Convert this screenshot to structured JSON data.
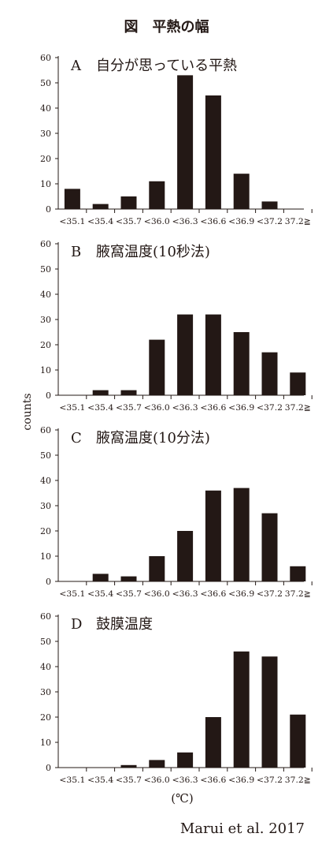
{
  "figure_title": {
    "label": "図",
    "text": "平熱の幅"
  },
  "ylabel": "counts",
  "unit": "(℃)",
  "source": "Marui et al. 2017",
  "bar_color": "#231815",
  "chart_data": [
    {
      "type": "bar",
      "panel": "A",
      "title": "自分が思っている平熱",
      "categories": [
        "<35.1",
        "<35.4",
        "<35.7",
        "<36.0",
        "<36.3",
        "<36.6",
        "<36.9",
        "<37.2",
        "37.2≧"
      ],
      "values": [
        8,
        2,
        5,
        11,
        53,
        45,
        14,
        3,
        0
      ],
      "ylim": [
        0,
        60
      ],
      "yticks": [
        0,
        10,
        20,
        30,
        40,
        50,
        60
      ],
      "ylabel": "counts",
      "xlabel": ""
    },
    {
      "type": "bar",
      "panel": "B",
      "title": "腋窩温度(10秒法)",
      "categories": [
        "<35.1",
        "<35.4",
        "<35.7",
        "<36.0",
        "<36.3",
        "<36.6",
        "<36.9",
        "<37.2",
        "37.2≧"
      ],
      "values": [
        0,
        2,
        2,
        22,
        32,
        32,
        25,
        17,
        9
      ],
      "ylim": [
        0,
        60
      ],
      "yticks": [
        0,
        10,
        20,
        30,
        40,
        50,
        60
      ],
      "ylabel": "counts",
      "xlabel": ""
    },
    {
      "type": "bar",
      "panel": "C",
      "title": "腋窩温度(10分法)",
      "categories": [
        "<35.1",
        "<35.4",
        "<35.7",
        "<36.0",
        "<36.3",
        "<36.6",
        "<36.9",
        "<37.2",
        "37.2≧"
      ],
      "values": [
        0,
        3,
        2,
        10,
        20,
        36,
        37,
        27,
        6
      ],
      "ylim": [
        0,
        60
      ],
      "yticks": [
        0,
        10,
        20,
        30,
        40,
        50,
        60
      ],
      "ylabel": "counts",
      "xlabel": ""
    },
    {
      "type": "bar",
      "panel": "D",
      "title": "鼓膜温度",
      "categories": [
        "<35.1",
        "<35.4",
        "<35.7",
        "<36.0",
        "<36.3",
        "<36.6",
        "<36.9",
        "<37.2",
        "37.2≧"
      ],
      "values": [
        0,
        0,
        1,
        3,
        6,
        20,
        46,
        44,
        21
      ],
      "ylim": [
        0,
        60
      ],
      "yticks": [
        0,
        10,
        20,
        30,
        40,
        50,
        60
      ],
      "ylabel": "counts",
      "xlabel": "(℃)"
    }
  ]
}
